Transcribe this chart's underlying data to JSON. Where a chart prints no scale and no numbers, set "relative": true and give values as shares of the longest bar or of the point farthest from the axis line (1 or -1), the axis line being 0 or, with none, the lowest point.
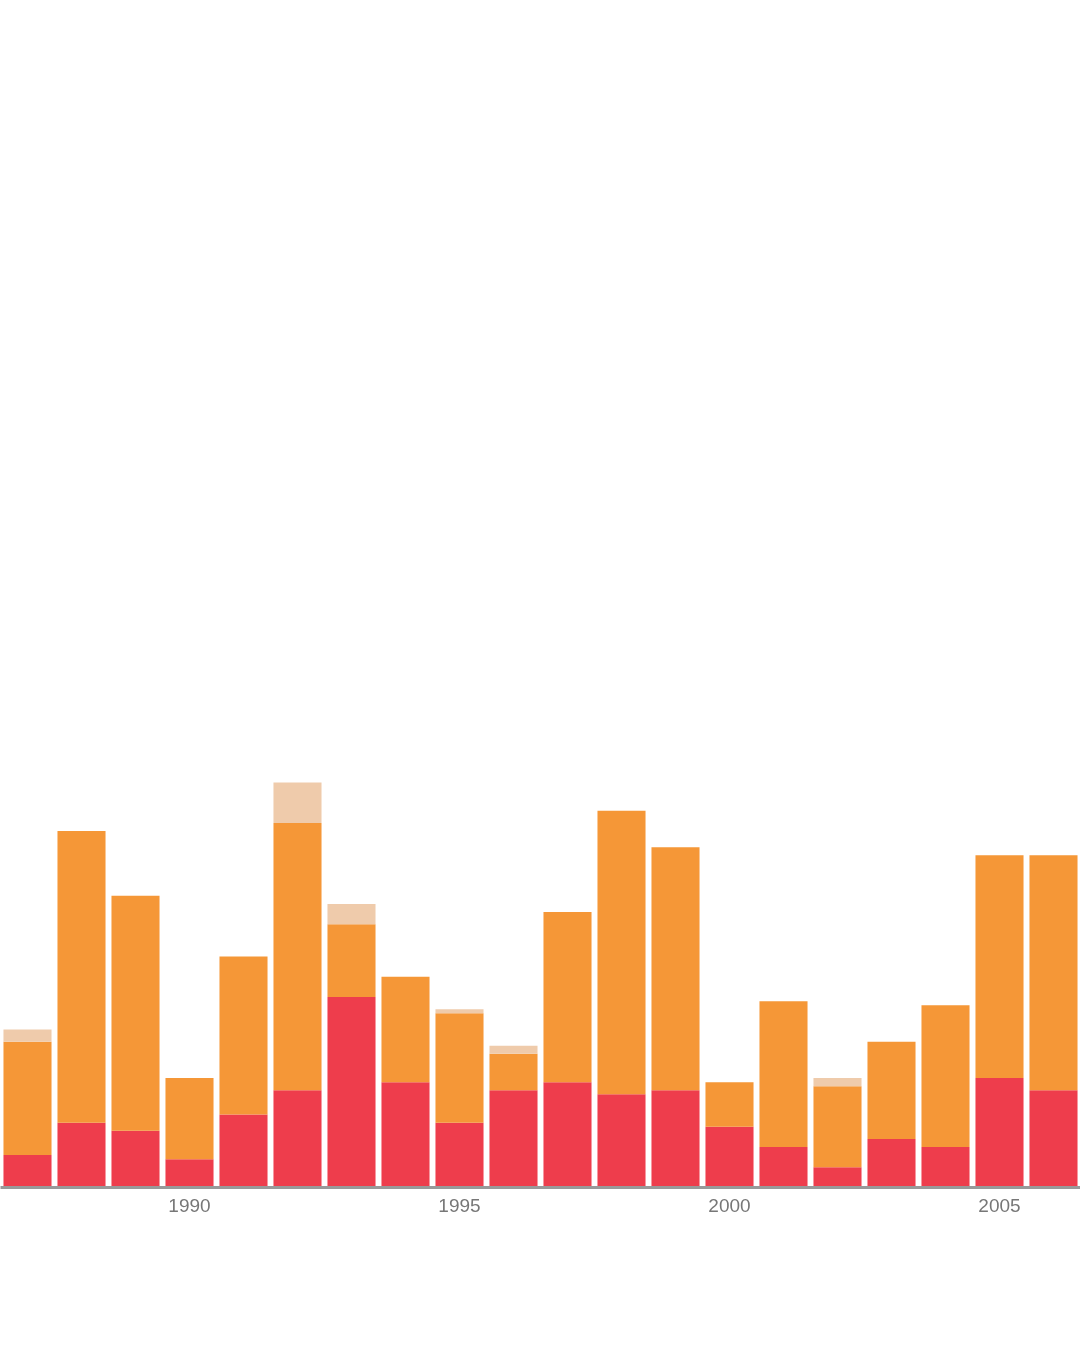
{
  "chart_data": {
    "type": "bar",
    "stacked": true,
    "relative": true,
    "x": [
      1987,
      1988,
      1989,
      1990,
      1991,
      1992,
      1993,
      1994,
      1995,
      1996,
      1997,
      1998,
      1999,
      2000,
      2001,
      2002,
      2003,
      2004,
      2005,
      2006
    ],
    "xlim": [
      1986.5,
      2006.5
    ],
    "xticks": [
      1990,
      1995,
      2000,
      2005
    ],
    "tick_labels": "x",
    "series": [
      {
        "color": "#ee3d4c",
        "values": [
          0.08,
          0.16,
          0.14,
          0.07,
          0.18,
          0.24,
          0.47,
          0.26,
          0.16,
          0.24,
          0.26,
          0.23,
          0.24,
          0.15,
          0.1,
          0.05,
          0.12,
          0.1,
          0.27,
          0.24
        ]
      },
      {
        "color": "#f59737",
        "values": [
          0.28,
          0.72,
          0.58,
          0.2,
          0.39,
          0.66,
          0.18,
          0.26,
          0.27,
          0.09,
          0.42,
          0.7,
          0.6,
          0.11,
          0.36,
          0.2,
          0.24,
          0.35,
          0.55,
          0.58
        ]
      },
      {
        "color": "#efcbab",
        "values": [
          0.03,
          null,
          null,
          null,
          null,
          0.1,
          0.05,
          null,
          0.01,
          0.02,
          null,
          null,
          null,
          null,
          null,
          0.02,
          null,
          null,
          null,
          null
        ]
      }
    ]
  }
}
